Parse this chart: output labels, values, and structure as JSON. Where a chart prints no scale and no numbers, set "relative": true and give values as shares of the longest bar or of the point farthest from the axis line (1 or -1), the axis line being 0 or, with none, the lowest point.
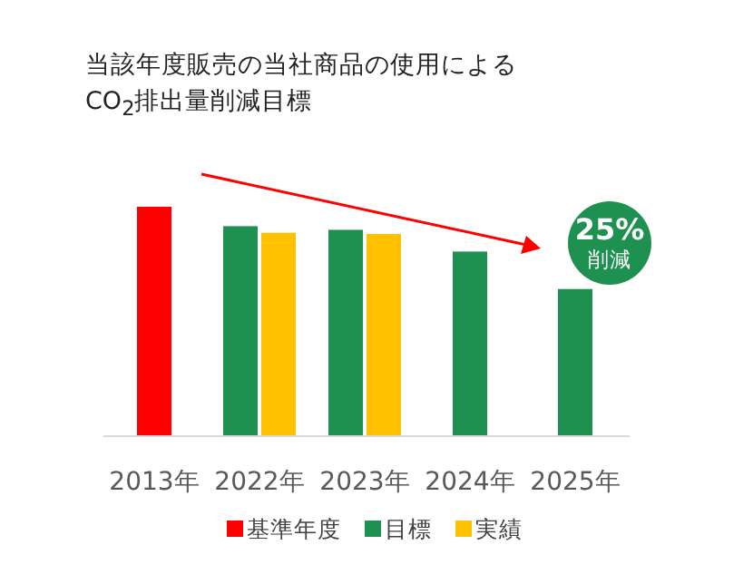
{
  "chart_data": {
    "type": "bar",
    "title": "当該年度販売の当社商品の使用による CO$_{2}$排出量削減目標",
    "categories": [
      "2013年",
      "2022年",
      "2023年",
      "2024年",
      "2025年"
    ],
    "relative": true,
    "legend": "bottom",
    "series": [
      {
        "name": "基準年度",
        "color": "#ff0000",
        "values": [
          1,
          null,
          null,
          null,
          null
        ]
      },
      {
        "name": "目標",
        "color": "#1e9050",
        "values": [
          null,
          0.915,
          0.899,
          0.804,
          0.64
        ]
      },
      {
        "name": "実績",
        "color": "#ffc000",
        "values": [
          null,
          0.886,
          0.881,
          null,
          null
        ]
      }
    ],
    "annotations": [
      "25%",
      "削減"
    ]
  }
}
